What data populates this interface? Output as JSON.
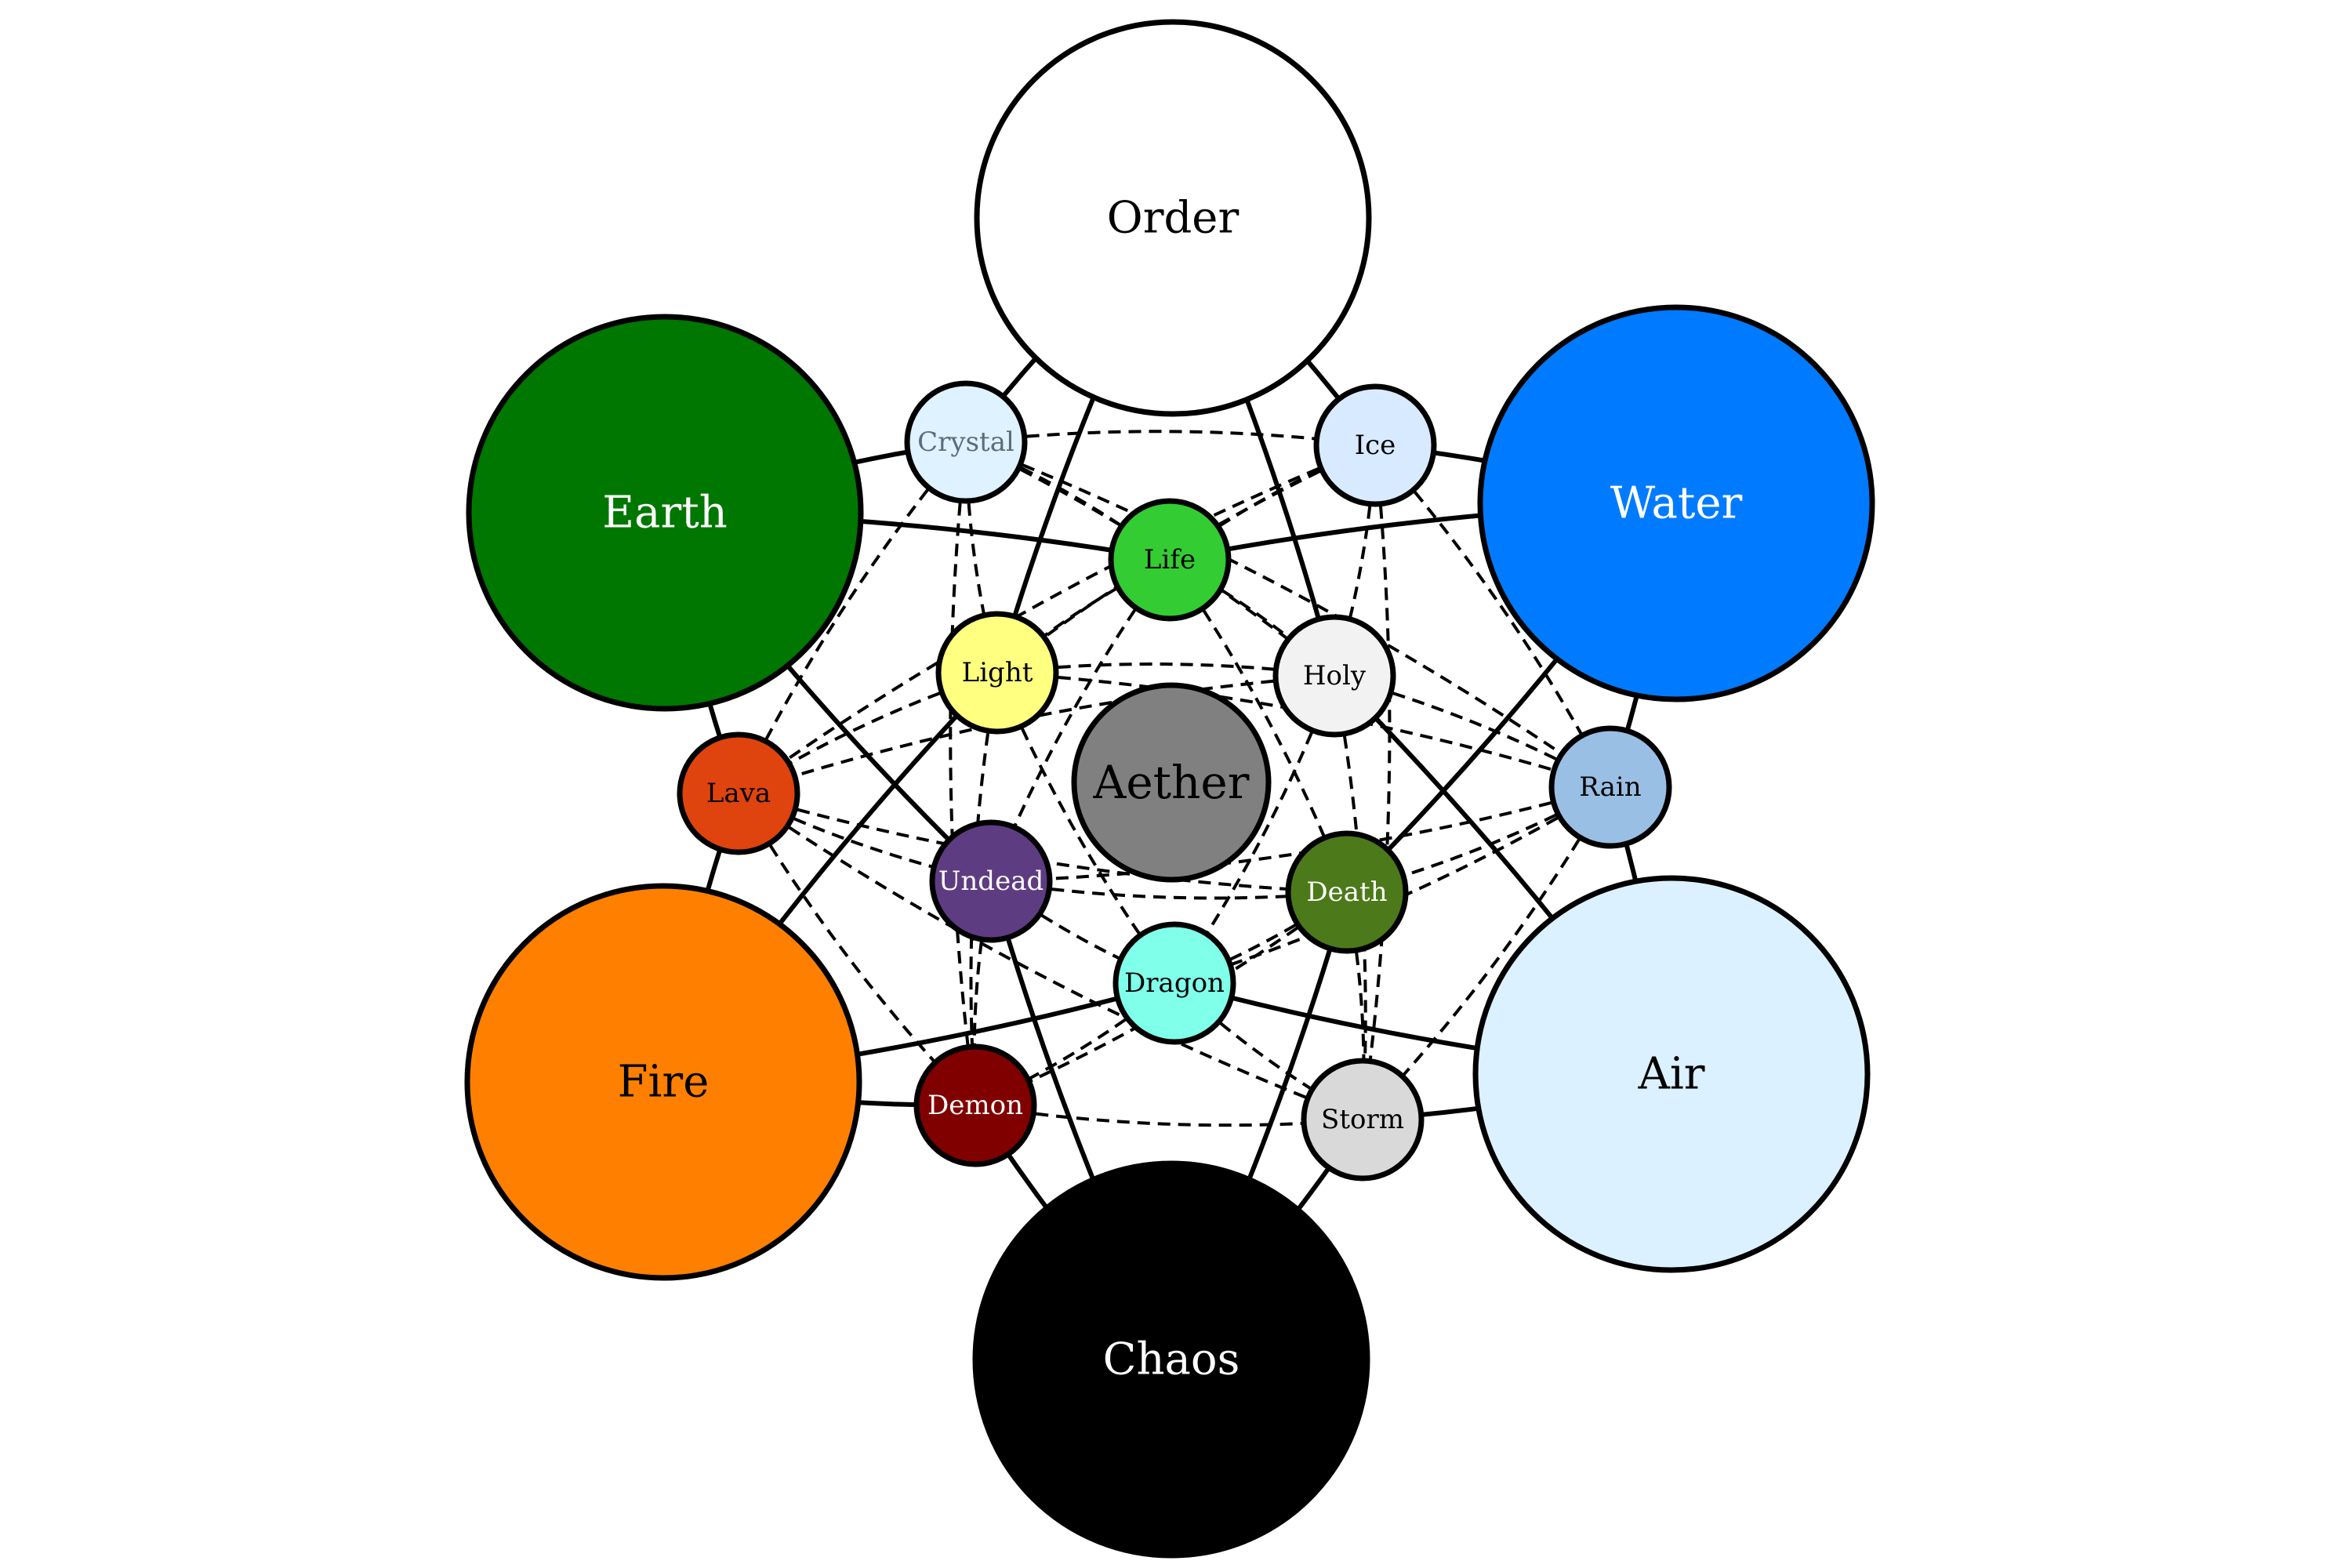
{
  "nodes": [
    {
      "id": "order",
      "label": "Order",
      "fill": "#ffffff",
      "text": "#000000",
      "tier": "major"
    },
    {
      "id": "earth",
      "label": "Earth",
      "fill": "#007700",
      "text": "#ffffff",
      "tier": "major"
    },
    {
      "id": "water",
      "label": "Water",
      "fill": "#007bff",
      "text": "#ffffff",
      "tier": "major"
    },
    {
      "id": "fire",
      "label": "Fire",
      "fill": "#ff8000",
      "text": "#000000",
      "tier": "major"
    },
    {
      "id": "air",
      "label": "Air",
      "fill": "#dbf1ff",
      "text": "#000000",
      "tier": "major"
    },
    {
      "id": "chaos",
      "label": "Chaos",
      "fill": "#000000",
      "text": "#ffffff",
      "tier": "major"
    },
    {
      "id": "aether",
      "label": "Aether",
      "fill": "#808080",
      "text": "#000000",
      "tier": "center"
    },
    {
      "id": "crystal",
      "label": "Crystal",
      "fill": "#dff2ff",
      "text": "#5a6e7a",
      "tier": "minor"
    },
    {
      "id": "ice",
      "label": "Ice",
      "fill": "#d8eaff",
      "text": "#000000",
      "tier": "minor"
    },
    {
      "id": "life",
      "label": "Life",
      "fill": "#33cc33",
      "text": "#000000",
      "tier": "minor"
    },
    {
      "id": "light",
      "label": "Light",
      "fill": "#ffff80",
      "text": "#000000",
      "tier": "minor"
    },
    {
      "id": "holy",
      "label": "Holy",
      "fill": "#f2f2f2",
      "text": "#000000",
      "tier": "minor"
    },
    {
      "id": "lava",
      "label": "Lava",
      "fill": "#e0440e",
      "text": "#000000",
      "tier": "minor"
    },
    {
      "id": "rain",
      "label": "Rain",
      "fill": "#9abfe4",
      "text": "#000000",
      "tier": "minor"
    },
    {
      "id": "undead",
      "label": "Undead",
      "fill": "#5e3c82",
      "text": "#ffffff",
      "tier": "minor"
    },
    {
      "id": "death",
      "label": "Death",
      "fill": "#4c7a1a",
      "text": "#ffffff",
      "tier": "minor"
    },
    {
      "id": "dragon",
      "label": "Dragon",
      "fill": "#80ffea",
      "text": "#000000",
      "tier": "minor"
    },
    {
      "id": "demon",
      "label": "Demon",
      "fill": "#800000",
      "text": "#ffffff",
      "tier": "minor"
    },
    {
      "id": "storm",
      "label": "Storm",
      "fill": "#d9d9d9",
      "text": "#000000",
      "tier": "minor"
    }
  ],
  "edges": {
    "solid": [
      [
        "order",
        "crystal"
      ],
      [
        "order",
        "ice"
      ],
      [
        "order",
        "light"
      ],
      [
        "order",
        "holy"
      ],
      [
        "earth",
        "crystal"
      ],
      [
        "earth",
        "lava"
      ],
      [
        "earth",
        "life"
      ],
      [
        "earth",
        "undead"
      ],
      [
        "water",
        "ice"
      ],
      [
        "water",
        "rain"
      ],
      [
        "water",
        "life"
      ],
      [
        "water",
        "death"
      ],
      [
        "fire",
        "lava"
      ],
      [
        "fire",
        "demon"
      ],
      [
        "fire",
        "light"
      ],
      [
        "fire",
        "dragon"
      ],
      [
        "air",
        "rain"
      ],
      [
        "air",
        "storm"
      ],
      [
        "air",
        "holy"
      ],
      [
        "air",
        "dragon"
      ],
      [
        "chaos",
        "demon"
      ],
      [
        "chaos",
        "storm"
      ],
      [
        "chaos",
        "undead"
      ],
      [
        "chaos",
        "death"
      ]
    ],
    "dashed": [
      [
        "crystal",
        "ice"
      ],
      [
        "crystal",
        "life"
      ],
      [
        "crystal",
        "light"
      ],
      [
        "crystal",
        "holy"
      ],
      [
        "crystal",
        "lava"
      ],
      [
        "crystal",
        "demon"
      ],
      [
        "crystal",
        "rain"
      ],
      [
        "ice",
        "life"
      ],
      [
        "ice",
        "holy"
      ],
      [
        "ice",
        "light"
      ],
      [
        "ice",
        "rain"
      ],
      [
        "ice",
        "storm"
      ],
      [
        "ice",
        "lava"
      ],
      [
        "life",
        "light"
      ],
      [
        "life",
        "holy"
      ],
      [
        "life",
        "undead"
      ],
      [
        "life",
        "death"
      ],
      [
        "light",
        "holy"
      ],
      [
        "light",
        "lava"
      ],
      [
        "light",
        "rain"
      ],
      [
        "light",
        "dragon"
      ],
      [
        "light",
        "demon"
      ],
      [
        "holy",
        "rain"
      ],
      [
        "holy",
        "lava"
      ],
      [
        "holy",
        "dragon"
      ],
      [
        "holy",
        "storm"
      ],
      [
        "lava",
        "undead"
      ],
      [
        "lava",
        "demon"
      ],
      [
        "lava",
        "storm"
      ],
      [
        "lava",
        "death"
      ],
      [
        "rain",
        "death"
      ],
      [
        "rain",
        "storm"
      ],
      [
        "rain",
        "dragon"
      ],
      [
        "rain",
        "undead"
      ],
      [
        "undead",
        "death"
      ],
      [
        "undead",
        "dragon"
      ],
      [
        "undead",
        "demon"
      ],
      [
        "death",
        "dragon"
      ],
      [
        "death",
        "storm"
      ],
      [
        "death",
        "demon"
      ],
      [
        "dragon",
        "demon"
      ],
      [
        "dragon",
        "storm"
      ],
      [
        "demon",
        "storm"
      ]
    ]
  }
}
